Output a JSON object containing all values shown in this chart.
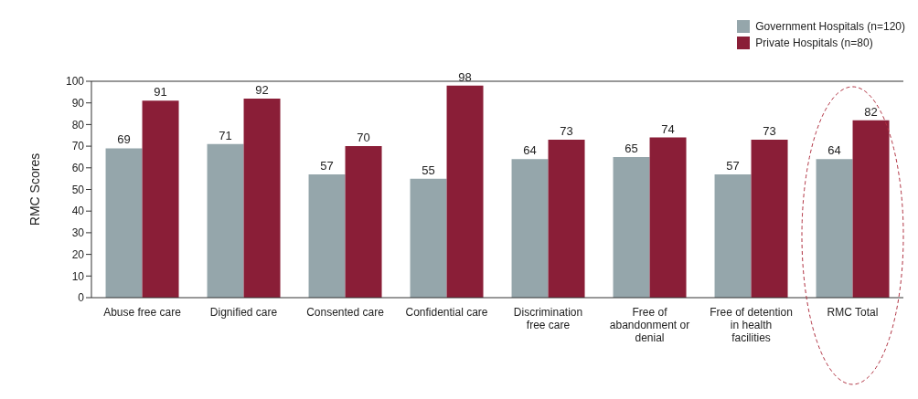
{
  "chart_data": {
    "type": "bar",
    "ylabel": "RMC Scores",
    "categories": [
      "Abuse free care",
      "Dignified care",
      "Consented care",
      "Confidential care",
      "Discrimination free care",
      "Free of abandonment or denial",
      "Free of detention in health facilities",
      "RMC Total"
    ],
    "series": [
      {
        "name": "Government Hospitals (n=120)",
        "color": "#95a6ab",
        "values": [
          69,
          71,
          57,
          55,
          64,
          65,
          57,
          64
        ]
      },
      {
        "name": "Private Hospitals (n=80)",
        "color": "#8a1e37",
        "values": [
          91,
          92,
          70,
          98,
          73,
          74,
          73,
          82
        ]
      }
    ],
    "ylim": [
      0,
      100
    ],
    "yticks": [
      0,
      10,
      20,
      30,
      40,
      50,
      60,
      70,
      80,
      90,
      100
    ],
    "grid": false,
    "legend": "top right",
    "data_labels": true
  }
}
